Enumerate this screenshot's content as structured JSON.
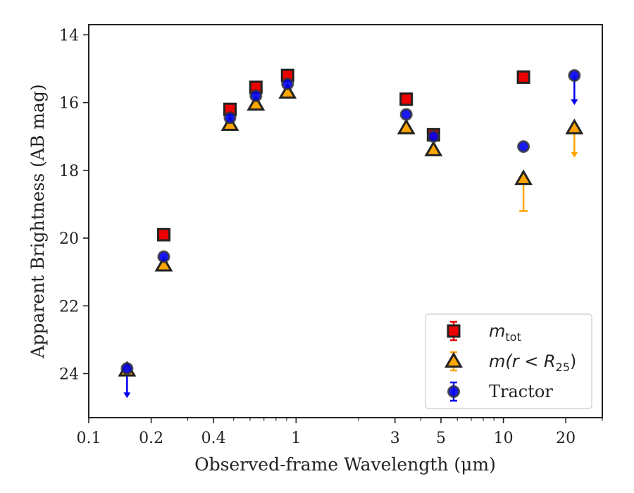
{
  "chart_data": {
    "type": "scatter",
    "xlabel": "Observed-frame Wavelength (μm)",
    "ylabel": "Apparent Brightness (AB mag)",
    "xscale": "log",
    "xlim": [
      0.1,
      30
    ],
    "ylim": [
      25.3,
      13.7
    ],
    "y_inverted": true,
    "x_ticks": [
      0.1,
      0.2,
      0.4,
      1,
      3,
      5,
      10,
      20
    ],
    "x_tick_labels": [
      "0.1",
      "0.2",
      "0.4",
      "1",
      "3",
      "5",
      "10",
      "20"
    ],
    "y_ticks": [
      14,
      16,
      18,
      20,
      22,
      24
    ],
    "y_tick_labels": [
      "14",
      "16",
      "18",
      "20",
      "22",
      "24"
    ],
    "legend_position": "lower right",
    "grid": false,
    "series": [
      {
        "name": "m_tot",
        "label_main": "m",
        "label_sub": "tot",
        "marker": "square",
        "color": "#ee0000",
        "edge_color": "#222222",
        "points": [
          {
            "x": 0.23,
            "y": 19.9
          },
          {
            "x": 0.48,
            "y": 16.2
          },
          {
            "x": 0.64,
            "y": 15.55
          },
          {
            "x": 0.91,
            "y": 15.2
          },
          {
            "x": 3.4,
            "y": 15.9
          },
          {
            "x": 4.6,
            "y": 16.95
          },
          {
            "x": 12.5,
            "y": 15.25
          }
        ]
      },
      {
        "name": "m(r < R_25)",
        "label_main": "m(r < R",
        "label_sub": "25",
        "label_end": ")",
        "marker": "triangle",
        "color": "#ffa500",
        "edge_color": "#222222",
        "points": [
          {
            "x": 0.153,
            "y": 23.9
          },
          {
            "x": 0.23,
            "y": 20.8
          },
          {
            "x": 0.48,
            "y": 16.65
          },
          {
            "x": 0.64,
            "y": 16.05
          },
          {
            "x": 0.91,
            "y": 15.7
          },
          {
            "x": 3.4,
            "y": 16.75
          },
          {
            "x": 4.6,
            "y": 17.4
          },
          {
            "x": 12.5,
            "y": 18.25,
            "err_low": 0,
            "err_high": 0.95
          },
          {
            "x": 22,
            "y": 16.75,
            "upper_limit": true
          }
        ]
      },
      {
        "name": "Tractor",
        "label_main": "Tractor",
        "marker": "circle",
        "color": "#0000ee",
        "edge_color": "#333333",
        "points": [
          {
            "x": 0.153,
            "y": 23.85,
            "upper_limit": true
          },
          {
            "x": 0.23,
            "y": 20.55
          },
          {
            "x": 0.48,
            "y": 16.45
          },
          {
            "x": 0.64,
            "y": 15.8
          },
          {
            "x": 0.91,
            "y": 15.45
          },
          {
            "x": 3.4,
            "y": 16.35
          },
          {
            "x": 4.6,
            "y": 17.0
          },
          {
            "x": 12.5,
            "y": 17.3
          },
          {
            "x": 22,
            "y": 15.2,
            "upper_limit": true
          }
        ]
      }
    ]
  }
}
